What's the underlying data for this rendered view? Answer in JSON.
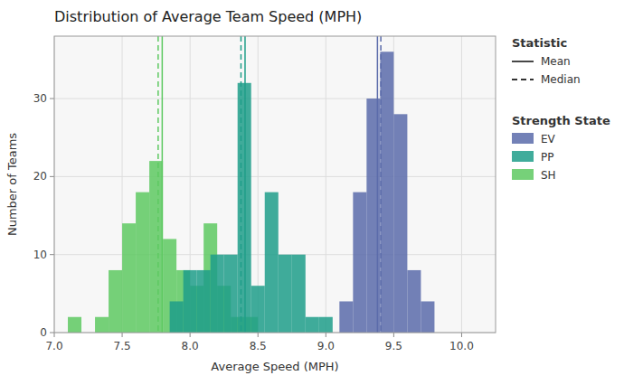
{
  "chart_data": {
    "type": "histogram",
    "title": "Distribution of Average Team Speed (MPH)",
    "x_label": "Average Speed (MPH)",
    "y_label": "Number of Teams",
    "xlim": [
      7.0,
      10.25
    ],
    "ylim": [
      0,
      38
    ],
    "xticks": [
      {
        "value": 7.0,
        "label": "7.0"
      },
      7.5,
      {
        "value": 8.0,
        "label": "8.0"
      },
      8.5,
      {
        "value": 9.0,
        "label": "9.0"
      },
      9.5,
      {
        "value": 10.0,
        "label": "10.0"
      }
    ],
    "yticks": [
      0,
      10,
      20,
      30
    ],
    "grid": true,
    "legend_title": "Strength State",
    "statistics_title": "Statistic",
    "statistics": [
      {
        "name": "Mean",
        "line_style": "solid"
      },
      {
        "name": "Median",
        "line_style": "dashed"
      }
    ],
    "series": [
      {
        "name": "SH",
        "color": "#5ec962",
        "bins": [
          7.1,
          7.2,
          7.3,
          7.4,
          7.5,
          7.6,
          7.7,
          7.8,
          7.9,
          8.0,
          8.1,
          8.2,
          8.3,
          8.4,
          8.5
        ],
        "values": [
          2,
          0,
          2,
          8,
          14,
          18,
          22,
          12,
          8,
          6,
          14,
          6,
          2,
          2
        ],
        "mean": 7.795,
        "median": 7.765
      },
      {
        "name": "PP",
        "color": "#1f9e89",
        "bins": [
          7.85,
          7.95,
          8.05,
          8.15,
          8.25,
          8.35,
          8.45,
          8.55,
          8.65,
          8.75,
          8.85,
          8.95,
          9.05
        ],
        "values": [
          4,
          8,
          8,
          10,
          10,
          32,
          6,
          18,
          10,
          10,
          2,
          2
        ],
        "mean": 8.405,
        "median": 8.375
      },
      {
        "name": "EV",
        "color": "#5b6baa",
        "bins": [
          9.1,
          9.2,
          9.3,
          9.4,
          9.5,
          9.6,
          9.7,
          9.8
        ],
        "values": [
          4,
          18,
          30,
          36,
          28,
          8,
          4
        ],
        "mean": 9.38,
        "median": 9.405
      }
    ]
  }
}
